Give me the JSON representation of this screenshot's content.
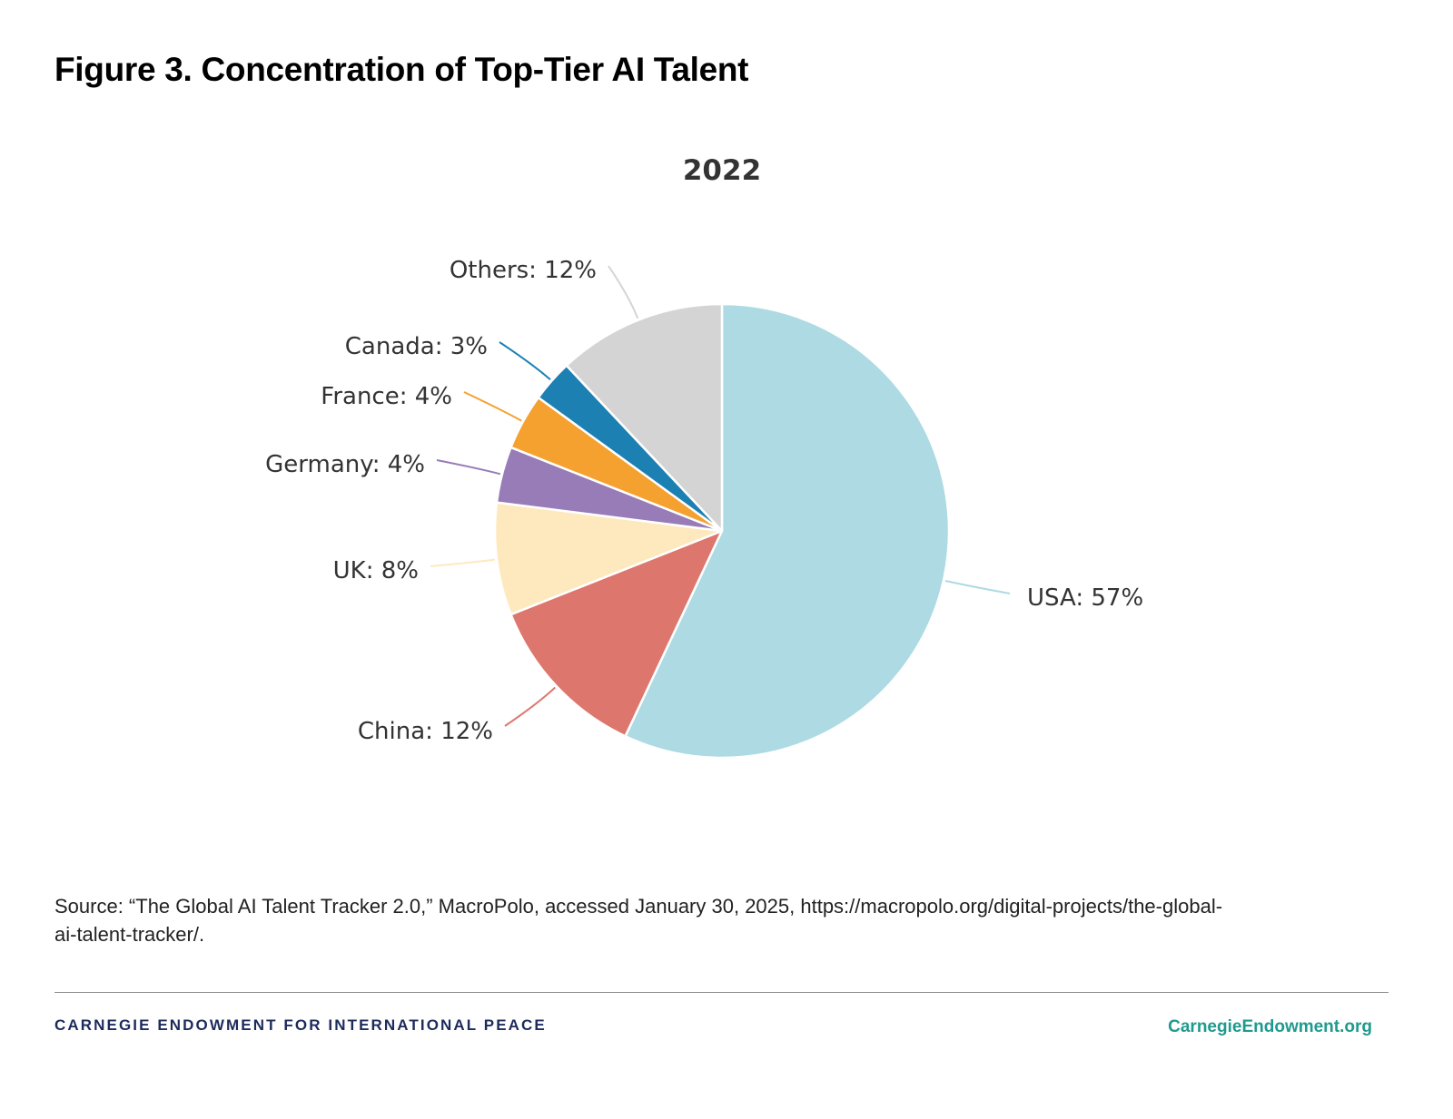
{
  "figure": {
    "title": "Figure 3. Concentration of Top-Tier AI Talent"
  },
  "chart_data": {
    "type": "pie",
    "title": "2022",
    "categories": [
      "USA",
      "China",
      "UK",
      "Germany",
      "France",
      "Canada",
      "Others"
    ],
    "values": [
      57,
      12,
      8,
      4,
      4,
      3,
      12
    ],
    "labels": [
      "USA: 57%",
      "China: 12%",
      "UK: 8%",
      "Germany: 4%",
      "France: 4%",
      "Canada: 3%",
      "Others: 12%"
    ],
    "colors": [
      "#addae3",
      "#dd776d",
      "#fee9bf",
      "#977cb7",
      "#f5a130",
      "#1d80b3",
      "#d4d4d4"
    ],
    "legend": "none",
    "data_labels": "outside-with-connectors"
  },
  "source": {
    "text": "Source: “The Global AI Talent Tracker 2.0,” MacroPolo, accessed January 30, 2025, https://macropolo.org/digital-projects/the-global-ai-talent-tracker/."
  },
  "footer": {
    "org_name": "CARNEGIE ENDOWMENT FOR INTERNATIONAL PEACE",
    "org_url": "CarnegieEndowment.org"
  }
}
